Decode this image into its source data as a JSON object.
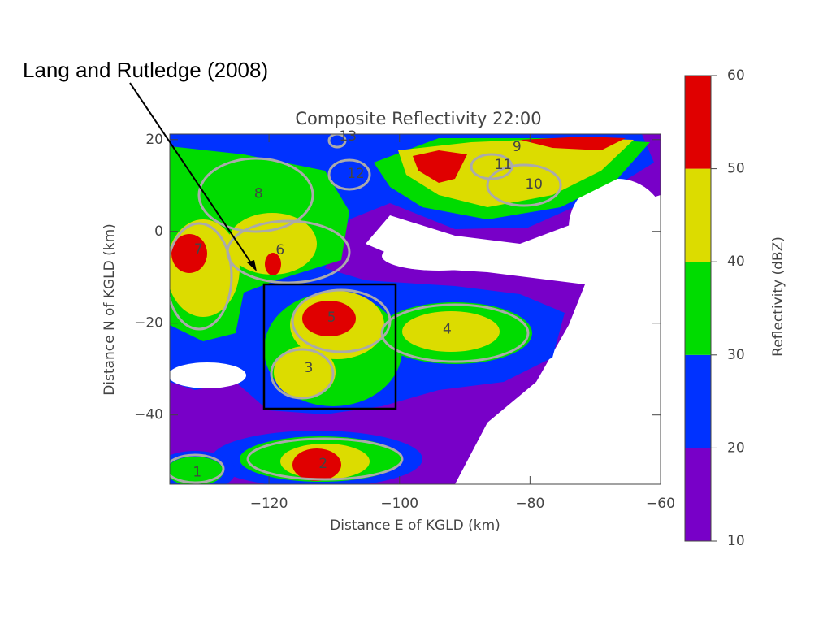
{
  "annotation": "Lang and Rutledge (2008)",
  "chart_data": {
    "type": "contour",
    "title": "Composite Reflectivity 22:00",
    "x_label": "Distance E of KGLD (km)",
    "y_label": "Distance N of KGLD (km)",
    "xlim": [
      -135.2,
      -60
    ],
    "ylim": [
      -55.1,
      21.2
    ],
    "xticks": [
      {
        "value": -120,
        "label": "−120"
      },
      {
        "value": -100,
        "label": "−100"
      },
      {
        "value": -80,
        "label": "−80"
      },
      {
        "value": -60,
        "label": "−60"
      }
    ],
    "yticks": [
      20,
      0,
      {
        "value": -20,
        "label": "−20"
      },
      {
        "value": -40,
        "label": "−40"
      }
    ],
    "colorbar": {
      "label": "Reflectivity (dBZ)",
      "levels": [
        10,
        20,
        30,
        40,
        50,
        60
      ],
      "colors": [
        "#7800c8",
        "#0032ff",
        "#00dc00",
        "#dcdc00",
        "#e00000"
      ]
    },
    "cells": {
      "labels": [
        "1",
        "2",
        "3",
        "4",
        "5",
        "6",
        "7",
        "8",
        "9",
        "10",
        "11",
        "12",
        "13"
      ],
      "x": [
        -131,
        -111.7,
        -113.9,
        -92.7,
        -110.4,
        -118.3,
        -130.8,
        -121.6,
        -82,
        -79.4,
        -84.1,
        -106.7,
        -107.9
      ],
      "y": [
        -52.5,
        -50.7,
        -29.8,
        -21.4,
        -18.8,
        -4.1,
        -3.9,
        8.2,
        18.4,
        10.2,
        14.5,
        12.5,
        20.7
      ]
    }
  }
}
